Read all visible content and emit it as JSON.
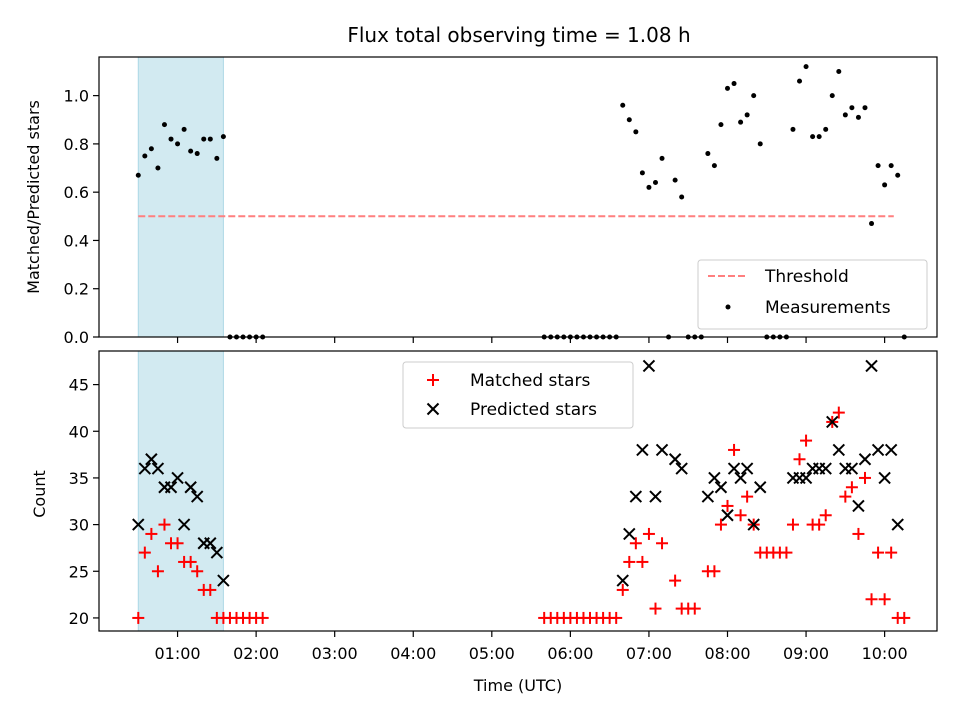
{
  "figure": {
    "title": "Flux total observing time = 1.08 h"
  },
  "colors": {
    "shade": "#add8e6",
    "threshold": "#ff7f7f",
    "measurement": "#000000",
    "matched": "#ff0000",
    "predicted": "#000000"
  },
  "chart_data": [
    {
      "type": "scatter",
      "title": "Flux total observing time = 1.08 h",
      "xlabel": "",
      "ylabel": "Matched/Predicted stars",
      "ylim": [
        0,
        1.16
      ],
      "yticks": [
        "0.0",
        "0.2",
        "0.4",
        "0.6",
        "0.8",
        "1.0"
      ],
      "grid": false,
      "legend_position": "lower-right",
      "shaded_interval": {
        "x0": "00:30",
        "x1": "01:35"
      },
      "threshold": {
        "name": "Threshold",
        "y": 0.5,
        "x": [
          "00:30",
          "10:07"
        ]
      },
      "series": [
        {
          "name": "Measurements",
          "points": [
            [
              "00:30",
              0.67
            ],
            [
              "00:35",
              0.75
            ],
            [
              "00:40",
              0.78
            ],
            [
              "00:45",
              0.7
            ],
            [
              "00:50",
              0.88
            ],
            [
              "00:55",
              0.82
            ],
            [
              "01:00",
              0.8
            ],
            [
              "01:05",
              0.86
            ],
            [
              "01:10",
              0.77
            ],
            [
              "01:15",
              0.76
            ],
            [
              "01:20",
              0.82
            ],
            [
              "01:25",
              0.82
            ],
            [
              "01:30",
              0.74
            ],
            [
              "01:35",
              0.83
            ],
            [
              "01:40",
              0.0
            ],
            [
              "01:45",
              0.0
            ],
            [
              "01:50",
              0.0
            ],
            [
              "01:55",
              0.0
            ],
            [
              "02:00",
              0.0
            ],
            [
              "02:05",
              0.0
            ],
            [
              "05:40",
              0.0
            ],
            [
              "05:45",
              0.0
            ],
            [
              "05:50",
              0.0
            ],
            [
              "05:55",
              0.0
            ],
            [
              "06:00",
              0.0
            ],
            [
              "06:05",
              0.0
            ],
            [
              "06:10",
              0.0
            ],
            [
              "06:15",
              0.0
            ],
            [
              "06:20",
              0.0
            ],
            [
              "06:25",
              0.0
            ],
            [
              "06:30",
              0.0
            ],
            [
              "06:35",
              0.0
            ],
            [
              "06:40",
              0.96
            ],
            [
              "06:45",
              0.9
            ],
            [
              "06:50",
              0.85
            ],
            [
              "06:55",
              0.68
            ],
            [
              "07:00",
              0.62
            ],
            [
              "07:05",
              0.64
            ],
            [
              "07:10",
              0.74
            ],
            [
              "07:15",
              0.0
            ],
            [
              "07:20",
              0.65
            ],
            [
              "07:25",
              0.58
            ],
            [
              "07:30",
              0.0
            ],
            [
              "07:35",
              0.0
            ],
            [
              "07:40",
              0.0
            ],
            [
              "07:45",
              0.76
            ],
            [
              "07:50",
              0.71
            ],
            [
              "07:55",
              0.88
            ],
            [
              "08:00",
              1.03
            ],
            [
              "08:05",
              1.05
            ],
            [
              "08:10",
              0.89
            ],
            [
              "08:15",
              0.92
            ],
            [
              "08:20",
              1.0
            ],
            [
              "08:25",
              0.8
            ],
            [
              "08:30",
              0.0
            ],
            [
              "08:35",
              0.0
            ],
            [
              "08:40",
              0.0
            ],
            [
              "08:45",
              0.0
            ],
            [
              "08:50",
              0.86
            ],
            [
              "08:55",
              1.06
            ],
            [
              "09:00",
              1.12
            ],
            [
              "09:05",
              0.83
            ],
            [
              "09:10",
              0.83
            ],
            [
              "09:15",
              0.86
            ],
            [
              "09:20",
              1.0
            ],
            [
              "09:25",
              1.1
            ],
            [
              "09:30",
              0.92
            ],
            [
              "09:35",
              0.95
            ],
            [
              "09:40",
              0.91
            ],
            [
              "09:45",
              0.95
            ],
            [
              "09:50",
              0.47
            ],
            [
              "09:55",
              0.71
            ],
            [
              "10:00",
              0.63
            ],
            [
              "10:05",
              0.71
            ],
            [
              "10:10",
              0.67
            ],
            [
              "10:15",
              0.0
            ]
          ]
        }
      ]
    },
    {
      "type": "scatter",
      "title": "",
      "xlabel": "Time (UTC)",
      "ylabel": "Count",
      "ylim": [
        18.6,
        48.6
      ],
      "yticks": [
        "20",
        "25",
        "30",
        "35",
        "40",
        "45"
      ],
      "xlim": [
        "00:00",
        "10:40"
      ],
      "xticks": [
        "01:00",
        "02:00",
        "03:00",
        "04:00",
        "05:00",
        "06:00",
        "07:00",
        "08:00",
        "09:00",
        "10:00"
      ],
      "grid": false,
      "legend_position": "top-center",
      "shaded_interval": {
        "x0": "00:30",
        "x1": "01:35"
      },
      "series": [
        {
          "name": "Matched stars",
          "marker": "plus",
          "points": [
            [
              "00:30",
              20
            ],
            [
              "00:35",
              27
            ],
            [
              "00:40",
              29
            ],
            [
              "00:45",
              25
            ],
            [
              "00:50",
              30
            ],
            [
              "00:55",
              28
            ],
            [
              "01:00",
              28
            ],
            [
              "01:05",
              26
            ],
            [
              "01:10",
              26
            ],
            [
              "01:15",
              25
            ],
            [
              "01:20",
              23
            ],
            [
              "01:25",
              23
            ],
            [
              "01:30",
              20
            ],
            [
              "01:35",
              20
            ],
            [
              "01:40",
              20
            ],
            [
              "01:45",
              20
            ],
            [
              "01:50",
              20
            ],
            [
              "01:55",
              20
            ],
            [
              "02:00",
              20
            ],
            [
              "02:05",
              20
            ],
            [
              "05:40",
              20
            ],
            [
              "05:45",
              20
            ],
            [
              "05:50",
              20
            ],
            [
              "05:55",
              20
            ],
            [
              "06:00",
              20
            ],
            [
              "06:05",
              20
            ],
            [
              "06:10",
              20
            ],
            [
              "06:15",
              20
            ],
            [
              "06:20",
              20
            ],
            [
              "06:25",
              20
            ],
            [
              "06:30",
              20
            ],
            [
              "06:35",
              20
            ],
            [
              "06:40",
              23
            ],
            [
              "06:45",
              26
            ],
            [
              "06:50",
              28
            ],
            [
              "06:55",
              26
            ],
            [
              "07:00",
              29
            ],
            [
              "07:05",
              21
            ],
            [
              "07:10",
              28
            ],
            [
              "07:20",
              24
            ],
            [
              "07:25",
              21
            ],
            [
              "07:30",
              21
            ],
            [
              "07:35",
              21
            ],
            [
              "07:45",
              25
            ],
            [
              "07:50",
              25
            ],
            [
              "07:55",
              30
            ],
            [
              "08:00",
              32
            ],
            [
              "08:05",
              38
            ],
            [
              "08:10",
              31
            ],
            [
              "08:15",
              33
            ],
            [
              "08:20",
              30
            ],
            [
              "08:25",
              27
            ],
            [
              "08:30",
              27
            ],
            [
              "08:35",
              27
            ],
            [
              "08:40",
              27
            ],
            [
              "08:45",
              27
            ],
            [
              "08:50",
              30
            ],
            [
              "08:55",
              37
            ],
            [
              "09:00",
              39
            ],
            [
              "09:05",
              30
            ],
            [
              "09:10",
              30
            ],
            [
              "09:15",
              31
            ],
            [
              "09:20",
              41
            ],
            [
              "09:25",
              42
            ],
            [
              "09:30",
              33
            ],
            [
              "09:35",
              34
            ],
            [
              "09:40",
              29
            ],
            [
              "09:45",
              35
            ],
            [
              "09:50",
              22
            ],
            [
              "09:55",
              27
            ],
            [
              "10:00",
              22
            ],
            [
              "10:05",
              27
            ],
            [
              "10:10",
              20
            ],
            [
              "10:15",
              20
            ]
          ]
        },
        {
          "name": "Predicted stars",
          "marker": "x",
          "points": [
            [
              "00:30",
              30
            ],
            [
              "00:35",
              36
            ],
            [
              "00:40",
              37
            ],
            [
              "00:45",
              36
            ],
            [
              "00:50",
              34
            ],
            [
              "00:55",
              34
            ],
            [
              "01:00",
              35
            ],
            [
              "01:05",
              30
            ],
            [
              "01:10",
              34
            ],
            [
              "01:15",
              33
            ],
            [
              "01:20",
              28
            ],
            [
              "01:25",
              28
            ],
            [
              "01:30",
              27
            ],
            [
              "01:35",
              24
            ],
            [
              "06:40",
              24
            ],
            [
              "06:45",
              29
            ],
            [
              "06:50",
              33
            ],
            [
              "06:55",
              38
            ],
            [
              "07:00",
              47
            ],
            [
              "07:05",
              33
            ],
            [
              "07:10",
              38
            ],
            [
              "07:20",
              37
            ],
            [
              "07:25",
              36
            ],
            [
              "07:45",
              33
            ],
            [
              "07:50",
              35
            ],
            [
              "07:55",
              34
            ],
            [
              "08:00",
              31
            ],
            [
              "08:05",
              36
            ],
            [
              "08:10",
              35
            ],
            [
              "08:15",
              36
            ],
            [
              "08:20",
              30
            ],
            [
              "08:25",
              34
            ],
            [
              "08:50",
              35
            ],
            [
              "08:55",
              35
            ],
            [
              "09:00",
              35
            ],
            [
              "09:05",
              36
            ],
            [
              "09:10",
              36
            ],
            [
              "09:15",
              36
            ],
            [
              "09:20",
              41
            ],
            [
              "09:25",
              38
            ],
            [
              "09:30",
              36
            ],
            [
              "09:35",
              36
            ],
            [
              "09:40",
              32
            ],
            [
              "09:45",
              37
            ],
            [
              "09:50",
              47
            ],
            [
              "09:55",
              38
            ],
            [
              "10:00",
              35
            ],
            [
              "10:05",
              38
            ],
            [
              "10:10",
              30
            ]
          ]
        }
      ]
    }
  ]
}
